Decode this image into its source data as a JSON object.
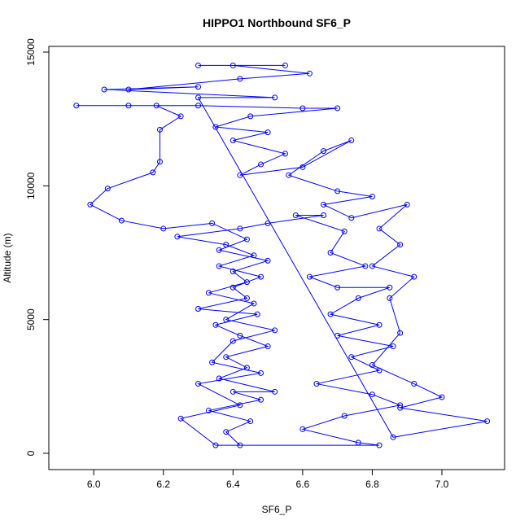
{
  "chart_data": {
    "type": "line",
    "title": "HIPPO1 Northbound SF6_P",
    "x_label": "SF6_P",
    "y_label": "Altitude (m)",
    "color": "#0000ff",
    "marker": "open-circle",
    "xlim": [
      5.871,
      7.18
    ],
    "ylim": [
      -608,
      15213
    ],
    "xticks": [
      {
        "value": 6,
        "label": "6.0"
      },
      {
        "value": 6.2,
        "label": "6.2"
      },
      {
        "value": 6.4,
        "label": "6.4"
      },
      {
        "value": 6.6,
        "label": "6.6"
      },
      {
        "value": 6.8,
        "label": "6.8"
      },
      {
        "value": 7,
        "label": "7.0"
      }
    ],
    "yticks": [
      0,
      5000,
      10000,
      15000
    ],
    "x": [
      6.42,
      6.38,
      6.45,
      6.33,
      6.48,
      6.4,
      6.52,
      6.36,
      6.44,
      6.38,
      6.5,
      6.42,
      6.35,
      6.47,
      6.3,
      6.44,
      6.4,
      6.48,
      6.36,
      6.46,
      6.38,
      6.24,
      6.42,
      6.5,
      6.66,
      6.58,
      6.72,
      6.68,
      6.78,
      6.62,
      6.7,
      6.85,
      6.76,
      6.68,
      6.82,
      6.7,
      6.86,
      6.74,
      6.82,
      6.64,
      6.8,
      6.88,
      6.72,
      6.6,
      6.76,
      6.82,
      6.35,
      6.25,
      6.42,
      6.3,
      6.48,
      6.34,
      6.4,
      6.52,
      6.38,
      6.46,
      6.33,
      6.44,
      6.4,
      6.5,
      6.36,
      6.44,
      6.34,
      6.2,
      6.08,
      5.99,
      6.04,
      6.17,
      6.19,
      6.19,
      6.25,
      6.18,
      5.95,
      6.1,
      6.3,
      6.6,
      6.7,
      6.45,
      6.35,
      6.5,
      6.4,
      6.55,
      6.48,
      6.42,
      6.6,
      6.74,
      6.66,
      6.56,
      6.7,
      6.8,
      6.66,
      6.74,
      6.9,
      6.82,
      6.88,
      6.8,
      6.92,
      6.85,
      6.88,
      6.8,
      6.92,
      7.0,
      6.88,
      7.13,
      6.86,
      6.3,
      6.52,
      6.03,
      6.3,
      6.1,
      6.42,
      6.62,
      6.4,
      6.55,
      6.3
    ],
    "values": [
      300,
      800,
      1200,
      1600,
      2000,
      2300,
      2300,
      2800,
      3200,
      3600,
      4000,
      4400,
      4800,
      5200,
      5400,
      5800,
      6200,
      6600,
      7000,
      7400,
      7800,
      8100,
      8400,
      8600,
      8900,
      8900,
      8300,
      7500,
      7000,
      6600,
      6200,
      6200,
      5800,
      5200,
      4800,
      4400,
      4000,
      3600,
      3100,
      2600,
      2200,
      1800,
      1400,
      900,
      400,
      300,
      300,
      1300,
      1800,
      2600,
      3000,
      3400,
      4200,
      4600,
      5000,
      5600,
      6000,
      6400,
      6800,
      7200,
      7600,
      8000,
      8600,
      8400,
      8700,
      9300,
      9900,
      10500,
      10900,
      12100,
      12600,
      13000,
      13000,
      13000,
      13000,
      12900,
      12900,
      12600,
      12200,
      12000,
      11700,
      11200,
      10800,
      10400,
      10700,
      11700,
      11300,
      10400,
      9800,
      9600,
      9300,
      8800,
      9300,
      8400,
      7800,
      7000,
      6600,
      5800,
      4500,
      3300,
      2600,
      2100,
      1700,
      1200,
      600,
      13300,
      13300,
      13600,
      13700,
      13600,
      14000,
      14200,
      14500,
      14500,
      14500
    ]
  }
}
